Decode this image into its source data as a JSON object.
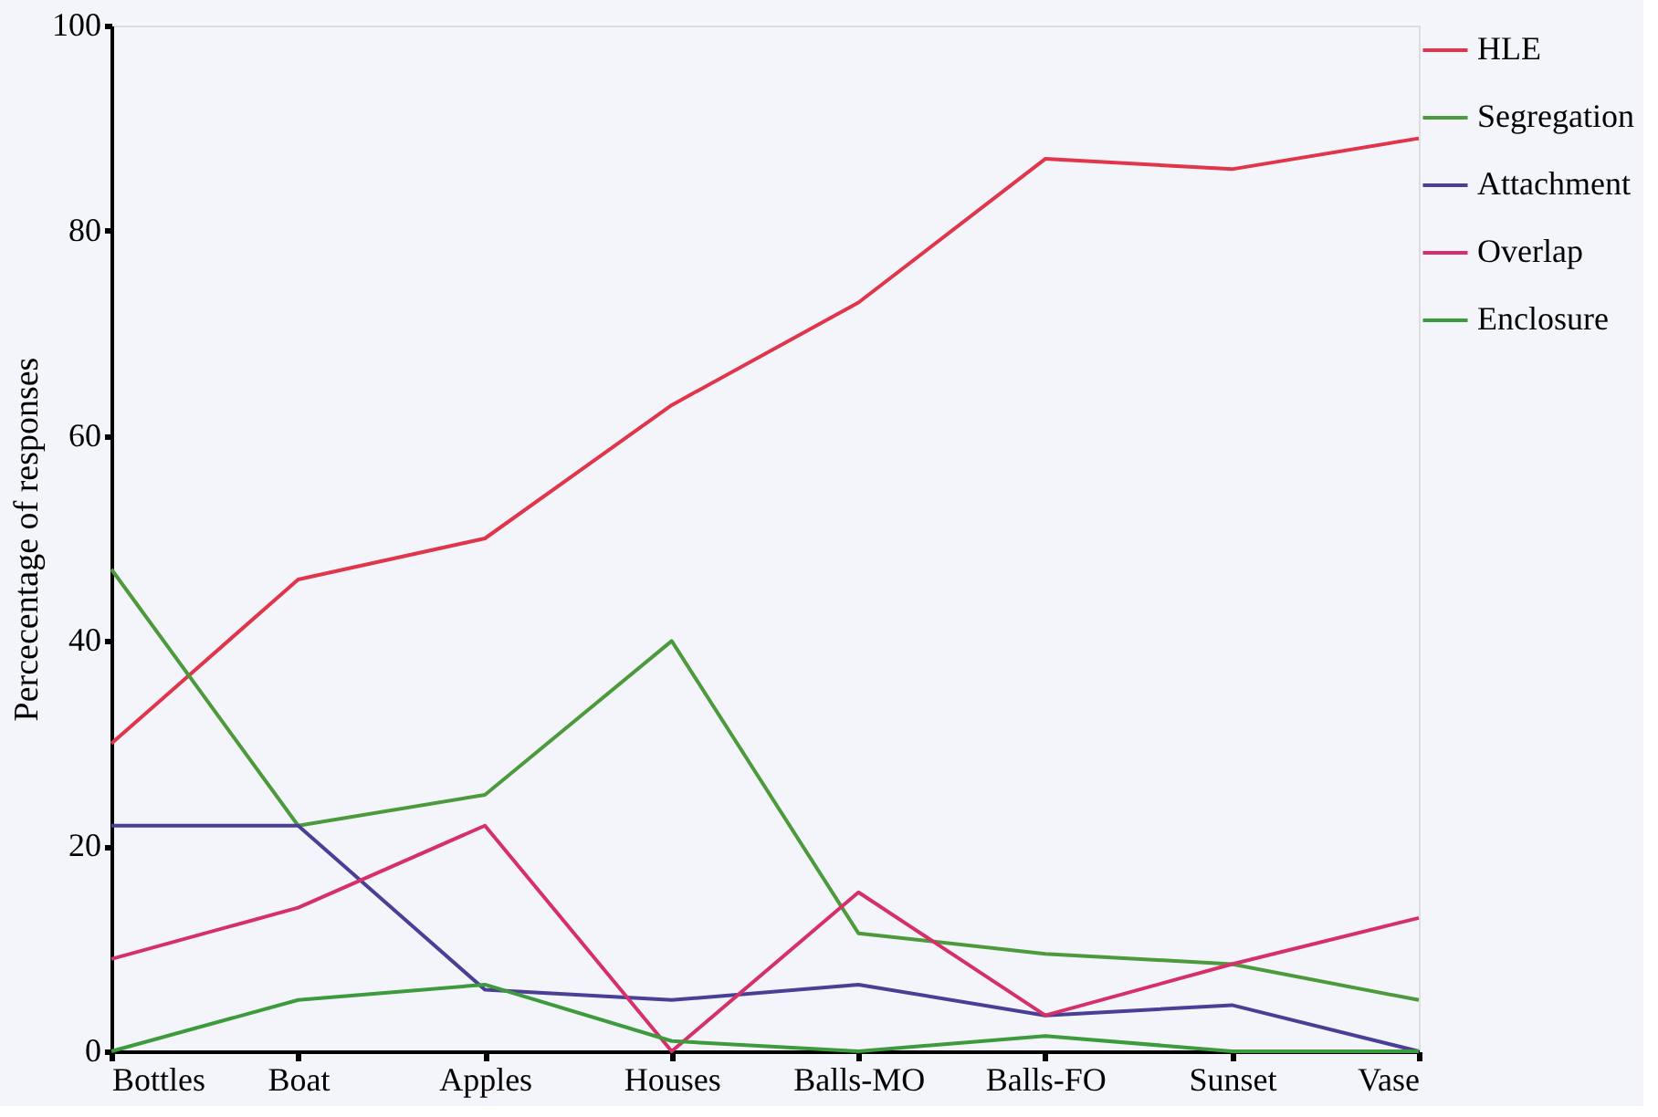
{
  "chart_data": {
    "type": "line",
    "ylabel": "Percecentage of responses",
    "categories": [
      "Bottles",
      "Boat",
      "Apples",
      "Houses",
      "Balls-MO",
      "Balls-FO",
      "Sunset",
      "Vase"
    ],
    "series": [
      {
        "name": "HLE",
        "color": "#e0354a",
        "values": [
          30,
          46,
          50,
          63,
          73,
          87,
          86,
          89
        ]
      },
      {
        "name": "Segregation",
        "color": "#4c9a3c",
        "values": [
          47,
          22,
          25,
          40,
          11.5,
          9.5,
          8.5,
          5
        ]
      },
      {
        "name": "Attachment",
        "color": "#4a3f96",
        "values": [
          22,
          22,
          6,
          5,
          6.5,
          3.5,
          4.5,
          0
        ]
      },
      {
        "name": "Overlap",
        "color": "#d6306a",
        "values": [
          9,
          14,
          22,
          0,
          15.5,
          3.5,
          8.5,
          13
        ]
      },
      {
        "name": "Enclosure",
        "color": "#3d9a3d",
        "values": [
          0,
          5,
          6.5,
          1,
          0,
          1.5,
          0,
          0
        ]
      }
    ],
    "ylim": [
      0,
      100
    ],
    "yticks": [
      0,
      20,
      40,
      60,
      80,
      100
    ],
    "grid": false,
    "legend": "right",
    "marker": "none",
    "line_style": "solid"
  }
}
